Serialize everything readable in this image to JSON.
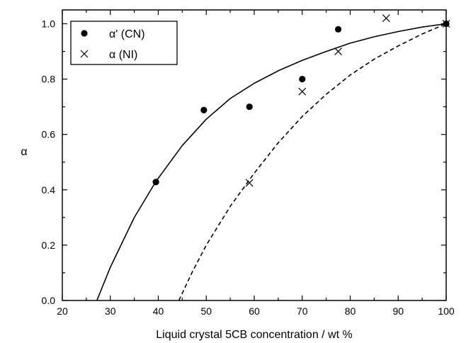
{
  "chart_data": {
    "type": "scatter",
    "xlabel": "Liquid crystal 5CB concentration / wt  %",
    "ylabel": "α",
    "xlim": [
      20,
      100
    ],
    "ylim": [
      0.0,
      1.05
    ],
    "xticks": [
      "20",
      "30",
      "40",
      "50",
      "60",
      "70",
      "80",
      "90",
      "100"
    ],
    "yticks": [
      "0.0",
      "0.2",
      "0.4",
      "0.6",
      "0.8",
      "1.0"
    ],
    "grid": false,
    "legend_position": "top-left",
    "series": [
      {
        "name": "α' (CN)",
        "marker": "filled-circle",
        "x": [
          39.5,
          49.5,
          59.0,
          70.0,
          77.5,
          100.0
        ],
        "y": [
          0.428,
          0.688,
          0.7,
          0.8,
          0.98,
          1.0
        ]
      },
      {
        "name": "α  (NI)",
        "marker": "cross",
        "x": [
          59.0,
          70.0,
          77.5,
          87.5,
          100.0
        ],
        "y": [
          0.425,
          0.755,
          0.9,
          1.02,
          1.0
        ]
      }
    ],
    "curves": [
      {
        "style": "solid",
        "x": [
          27.2,
          30,
          35,
          39.5,
          45,
          50,
          55,
          60,
          65,
          70,
          75,
          80,
          85,
          90,
          95,
          100
        ],
        "y": [
          0.0,
          0.12,
          0.3,
          0.43,
          0.56,
          0.655,
          0.73,
          0.785,
          0.83,
          0.868,
          0.9,
          0.93,
          0.953,
          0.972,
          0.988,
          1.0
        ]
      },
      {
        "style": "dashed",
        "x": [
          44.3,
          47,
          50,
          55,
          60,
          65,
          70,
          75,
          80,
          85,
          90,
          95,
          100
        ],
        "y": [
          0.0,
          0.1,
          0.2,
          0.34,
          0.46,
          0.57,
          0.665,
          0.745,
          0.815,
          0.872,
          0.92,
          0.963,
          1.0
        ]
      }
    ]
  }
}
